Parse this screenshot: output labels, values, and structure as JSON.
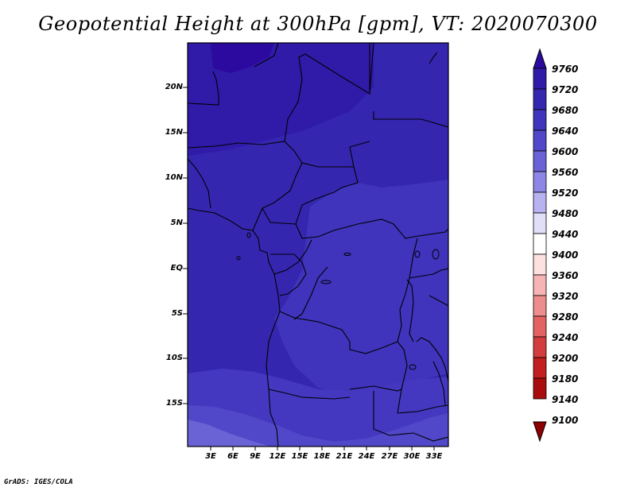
{
  "title": "Geopotential Height at 300hPa [gpm], VT: 2020070300",
  "credit": "GrADS: IGES/COLA",
  "map": {
    "lat_labels": [
      "20N",
      "15N",
      "10N",
      "5N",
      "EQ",
      "5S",
      "10S",
      "15S"
    ],
    "lon_labels": [
      "3E",
      "6E",
      "9E",
      "12E",
      "15E",
      "18E",
      "21E",
      "24E",
      "27E",
      "30E",
      "33E"
    ]
  },
  "colorbar": {
    "labels": [
      "9760",
      "9720",
      "9680",
      "9640",
      "9600",
      "9560",
      "9520",
      "9480",
      "9440",
      "9400",
      "9360",
      "9320",
      "9280",
      "9240",
      "9200",
      "9180",
      "9140",
      "9100"
    ],
    "colors": [
      "#2d0a9f",
      "#301aa8",
      "#3526b0",
      "#3f34bb",
      "#5048c8",
      "#6a63d6",
      "#8e86e4",
      "#b8b3f0",
      "#e0def8",
      "#ffffff",
      "#fde0e0",
      "#f6b4b4",
      "#ee8d8d",
      "#e46262",
      "#d43d3d",
      "#c21f1f",
      "#a80c0c",
      "#8d0000"
    ]
  }
}
